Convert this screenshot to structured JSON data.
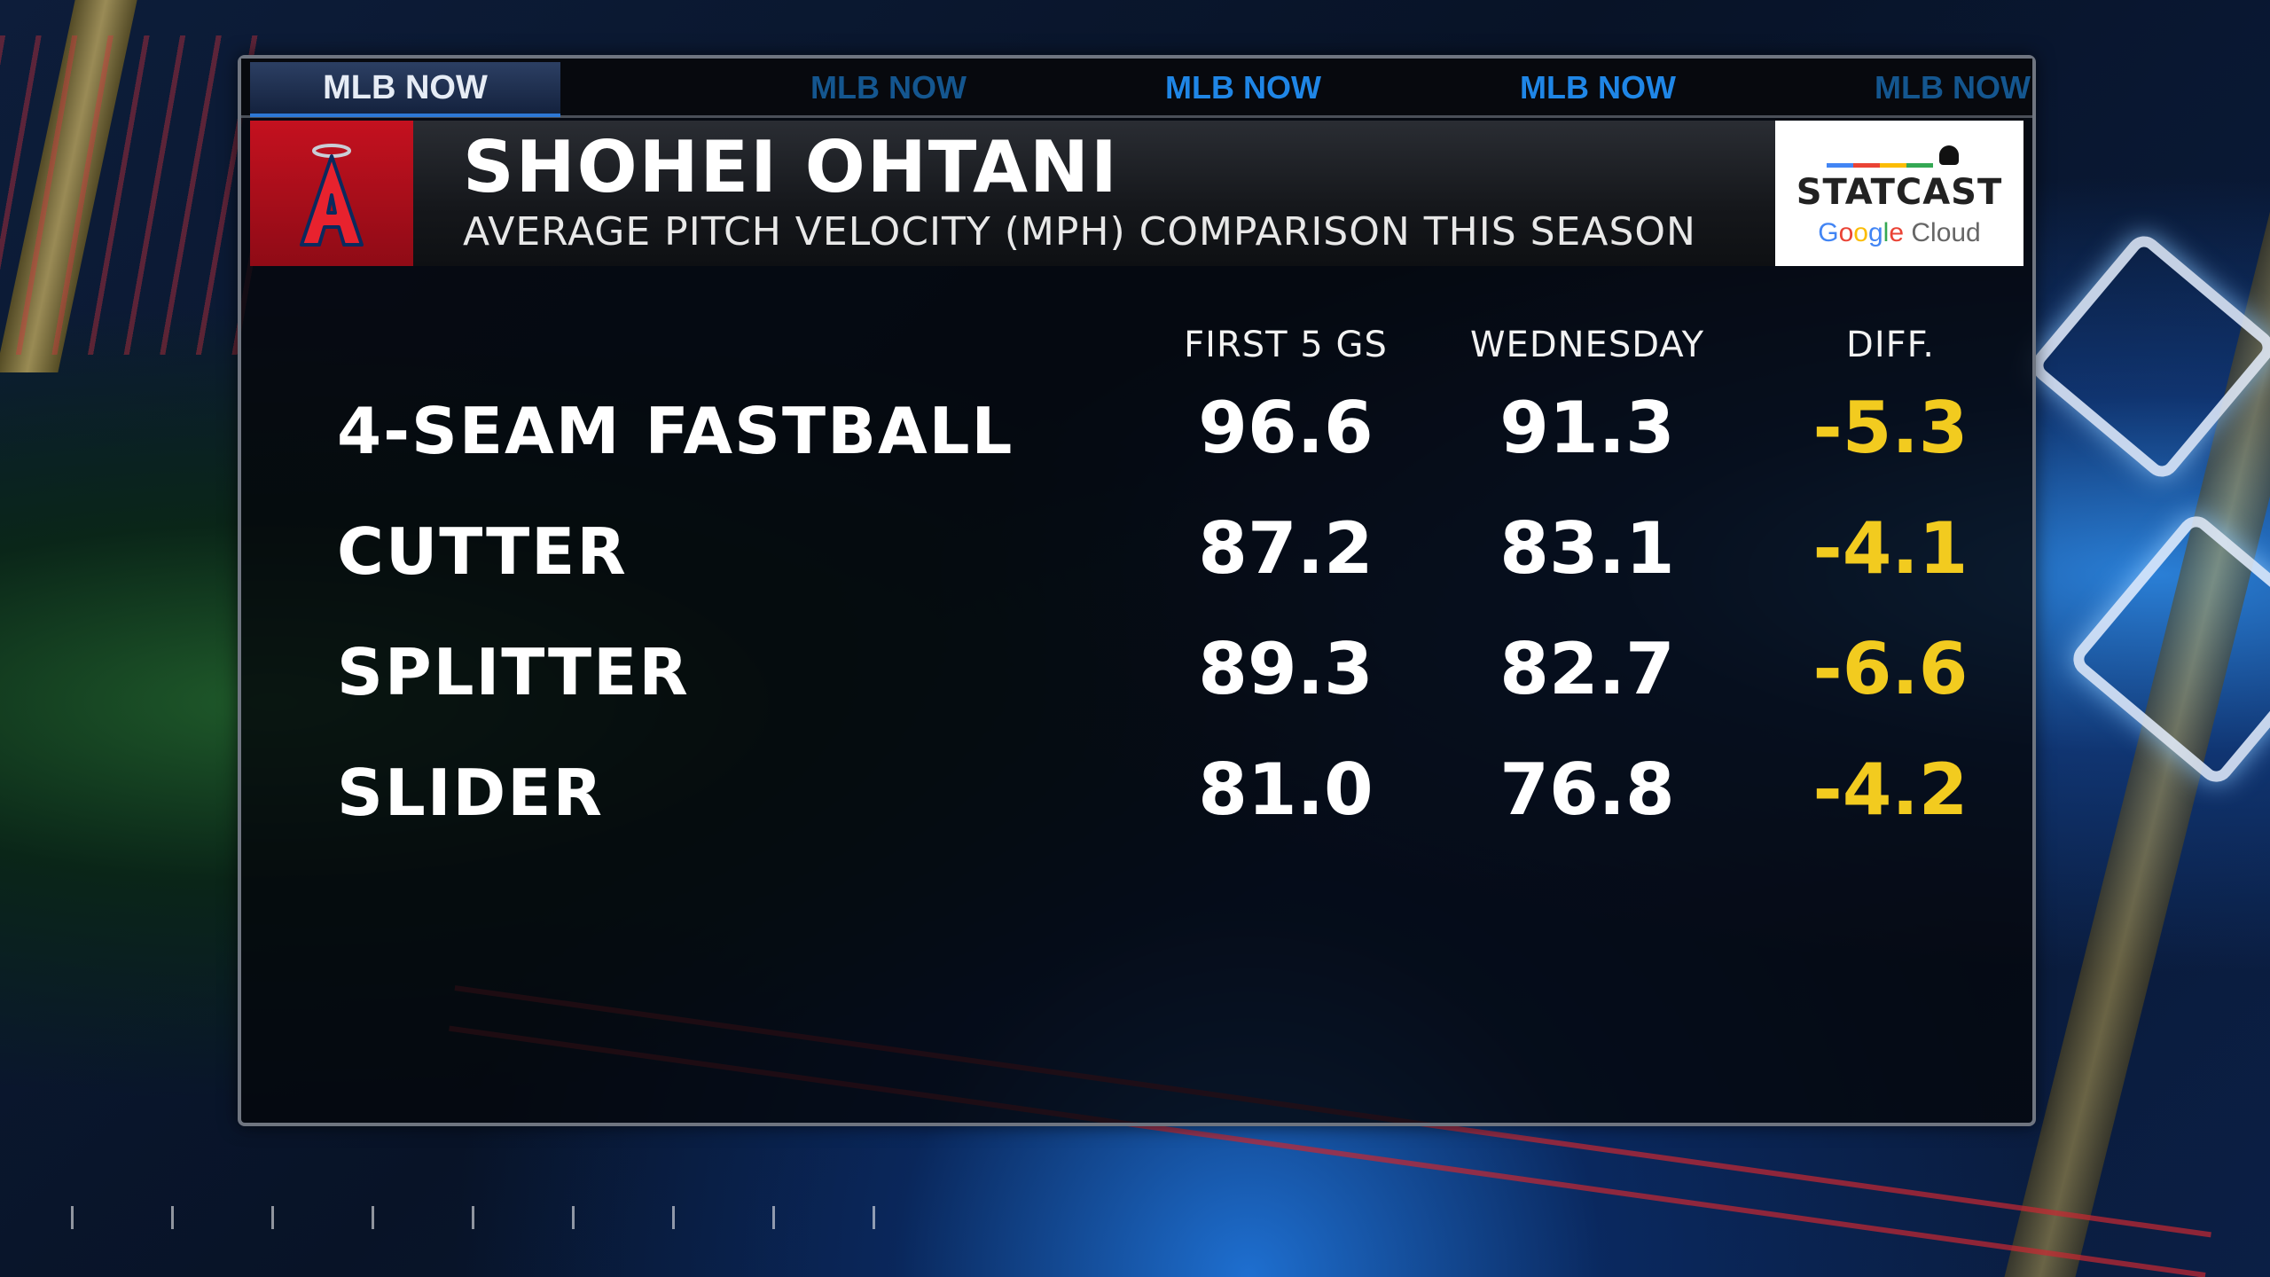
{
  "ticker": {
    "active": "MLB NOW",
    "items": [
      "MLB NOW",
      "MLB NOW",
      "MLB NOW",
      "MLB NOW"
    ]
  },
  "header": {
    "title": "SHOHEI OHTANI",
    "subtitle": "AVERAGE PITCH VELOCITY (MPH) COMPARISON THIS SEASON",
    "team_logo": "angels-halo-a-icon",
    "sponsor": {
      "word": "STATCAST",
      "google_letters": [
        "G",
        "o",
        "o",
        "g",
        "l",
        "e"
      ],
      "cloud": "Cloud"
    }
  },
  "table": {
    "columns": [
      "FIRST 5 GS",
      "WEDNESDAY",
      "DIFF."
    ],
    "rows": [
      {
        "pitch": "4-SEAM FASTBALL",
        "first5": "96.6",
        "wednesday": "91.3",
        "diff": "-5.3"
      },
      {
        "pitch": "CUTTER",
        "first5": "87.2",
        "wednesday": "83.1",
        "diff": "-4.1"
      },
      {
        "pitch": "SPLITTER",
        "first5": "89.3",
        "wednesday": "82.7",
        "diff": "-6.6"
      },
      {
        "pitch": "SLIDER",
        "first5": "81.0",
        "wednesday": "76.8",
        "diff": "-4.2"
      }
    ]
  },
  "colors": {
    "diff": "#f2cb1f",
    "team_red": "#c4111f",
    "ticker_blue": "#1f86e6"
  }
}
